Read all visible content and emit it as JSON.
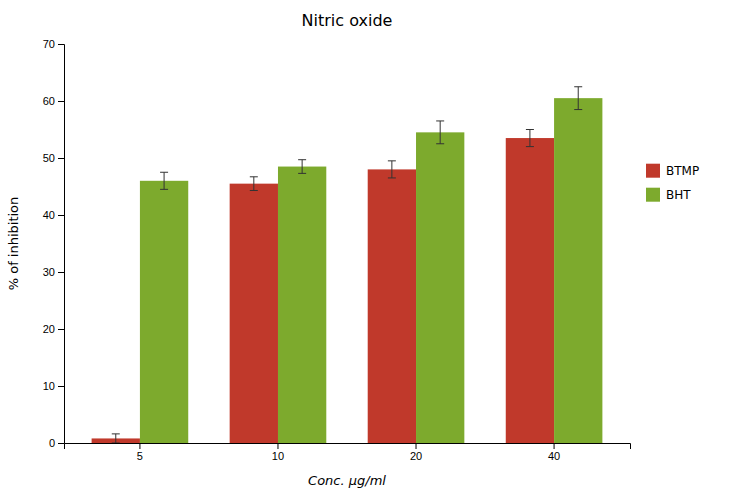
{
  "chart_data": {
    "type": "bar",
    "title": "Nitric oxide",
    "xlabel": "Conc. µg/ml",
    "ylabel": "% of inhibition",
    "categories": [
      "5",
      "10",
      "20",
      "40"
    ],
    "series": [
      {
        "name": "BTMP",
        "color": "#c0392b",
        "values": [
          0.8,
          45.5,
          48.0,
          53.5
        ],
        "errors": [
          0.8,
          1.2,
          1.5,
          1.5
        ]
      },
      {
        "name": "BHT",
        "color": "#7daa2d",
        "values": [
          46.0,
          48.5,
          54.5,
          60.5
        ],
        "errors": [
          1.5,
          1.2,
          2.0,
          2.0
        ]
      }
    ],
    "ylim": [
      0,
      70
    ],
    "yticks": [
      0,
      10,
      20,
      30,
      40,
      50,
      60,
      70
    ],
    "grid": false,
    "legend": "right"
  }
}
